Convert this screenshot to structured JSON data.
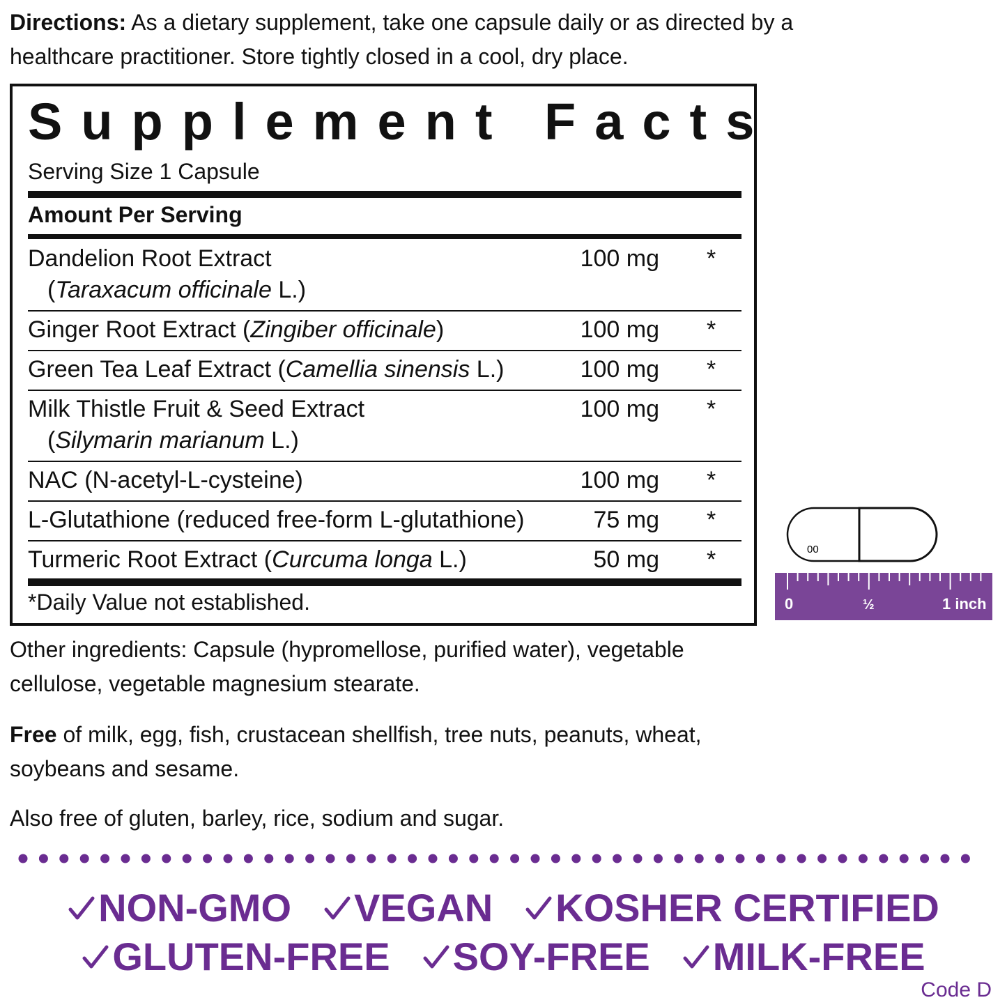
{
  "directions": {
    "label": "Directions:",
    "text": "As a dietary supplement, take one capsule daily or as directed by a healthcare practitioner. Store tightly closed in a cool, dry place."
  },
  "facts": {
    "title": "Supplement Facts",
    "serving_size": "Serving Size 1 Capsule",
    "amount_header": "Amount Per Serving",
    "rows": [
      {
        "lines": [
          [
            "Dandelion Root Extract"
          ],
          [
            "(",
            "Taraxacum officinale",
            " L.)"
          ]
        ],
        "amount": "100 mg",
        "dv": "*"
      },
      {
        "lines": [
          [
            "Ginger Root Extract (",
            "Zingiber officinale",
            ")"
          ]
        ],
        "amount": "100 mg",
        "dv": "*"
      },
      {
        "lines": [
          [
            "Green Tea Leaf Extract (",
            "Camellia sinensis",
            " L.)"
          ]
        ],
        "amount": "100 mg",
        "dv": "*"
      },
      {
        "lines": [
          [
            "Milk Thistle Fruit & Seed Extract"
          ],
          [
            "(",
            "Silymarin marianum",
            " L.)"
          ]
        ],
        "amount": "100 mg",
        "dv": "*"
      },
      {
        "lines": [
          [
            "NAC (N-acetyl-L-cysteine)"
          ]
        ],
        "amount": "100 mg",
        "dv": "*"
      },
      {
        "lines": [
          [
            "L-Glutathione (reduced free-form L-glutathione)"
          ]
        ],
        "amount": "75 mg",
        "dv": "*"
      },
      {
        "lines": [
          [
            "Turmeric Root Extract (",
            "Curcuma longa",
            " L.)"
          ]
        ],
        "amount": "50 mg",
        "dv": "*"
      }
    ],
    "footnote": "*Daily Value not established."
  },
  "capsule": {
    "size": "00"
  },
  "ruler": {
    "labels": [
      "0",
      "½",
      "1 inch"
    ]
  },
  "other_ingredients": "Other ingredients: Capsule (hypromellose, purified water), vegetable cellulose, vegetable magnesium stearate.",
  "free": {
    "label": "Free",
    "text": "of milk, egg, fish, crustacean shellfish, tree nuts, peanuts, wheat, soybeans and sesame."
  },
  "also_free": "Also free of gluten, barley, rice, sodium and sugar.",
  "badges": [
    [
      "NON-GMO",
      "VEGAN",
      "KOSHER CERTIFIED"
    ],
    [
      "GLUTEN-FREE",
      "SOY-FREE",
      "MILK-FREE"
    ]
  ],
  "code": "Code D"
}
